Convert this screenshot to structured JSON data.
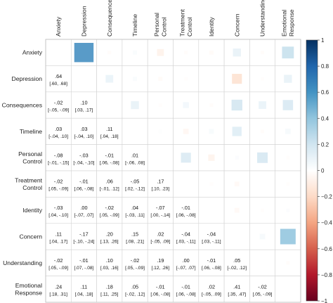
{
  "chart_data": {
    "type": "heatmap",
    "subtype": "correlation-matrix",
    "variables": [
      [
        "Anxiety"
      ],
      [
        "Depression"
      ],
      [
        "Consequences"
      ],
      [
        "Timeline"
      ],
      [
        "Personal",
        "Control"
      ],
      [
        "Treatment",
        "Control"
      ],
      [
        "Identity"
      ],
      [
        "Concern"
      ],
      [
        "Understanding"
      ],
      [
        "Emotional",
        "Response"
      ]
    ],
    "upper_triangle_display": "colored squares sized and colored by correlation",
    "lower_triangle_display": "correlation coefficient with 95% confidence interval",
    "lower_cells": [
      {
        "row": 1,
        "col": 0,
        "r": 0.64,
        "r_label": ".64",
        "ci": "[.60, .68]"
      },
      {
        "row": 2,
        "col": 0,
        "r": -0.02,
        "r_label": "-.02",
        "ci": "[-.05, -.09]"
      },
      {
        "row": 2,
        "col": 1,
        "r": 0.1,
        "r_label": ".10",
        "ci": "[.03, .17]"
      },
      {
        "row": 3,
        "col": 0,
        "r": 0.03,
        "r_label": ".03",
        "ci": "[-.04, .10]"
      },
      {
        "row": 3,
        "col": 1,
        "r": 0.03,
        "r_label": ".03",
        "ci": "[-.04, .10]"
      },
      {
        "row": 3,
        "col": 2,
        "r": 0.11,
        "r_label": ".11",
        "ci": "[.04, .18]"
      },
      {
        "row": 4,
        "col": 0,
        "r": -0.08,
        "r_label": "-.08",
        "ci": "[-.01, -.15]"
      },
      {
        "row": 4,
        "col": 1,
        "r": -0.03,
        "r_label": "-.03",
        "ci": "[-.04, -.10]"
      },
      {
        "row": 4,
        "col": 2,
        "r": -0.01,
        "r_label": "-.01",
        "ci": "[.06, -.08]"
      },
      {
        "row": 4,
        "col": 3,
        "r": 0.01,
        "r_label": ".01",
        "ci": "[-.06, .08]"
      },
      {
        "row": 5,
        "col": 0,
        "r": -0.02,
        "r_label": "-.02",
        "ci": "[.05, -.09]"
      },
      {
        "row": 5,
        "col": 1,
        "r": -0.01,
        "r_label": "-.01",
        "ci": "[.06, -.08]"
      },
      {
        "row": 5,
        "col": 2,
        "r": 0.06,
        "r_label": ".06",
        "ci": "[-.01, .12]"
      },
      {
        "row": 5,
        "col": 3,
        "r": -0.05,
        "r_label": "-.05",
        "ci": "[.02, -.12]"
      },
      {
        "row": 5,
        "col": 4,
        "r": 0.17,
        "r_label": ".17",
        "ci": "[.10, .23]"
      },
      {
        "row": 6,
        "col": 0,
        "r": -0.03,
        "r_label": "-.03",
        "ci": "[.04, -.10]"
      },
      {
        "row": 6,
        "col": 1,
        "r": 0.0,
        "r_label": ".00",
        "ci": "[-.07, .07]"
      },
      {
        "row": 6,
        "col": 2,
        "r": -0.02,
        "r_label": "-.02",
        "ci": "[.05, -.09]"
      },
      {
        "row": 6,
        "col": 3,
        "r": 0.04,
        "r_label": ".04",
        "ci": "[-.03, .11]"
      },
      {
        "row": 6,
        "col": 4,
        "r": -0.07,
        "r_label": "-.07",
        "ci": "[.00, -.14]"
      },
      {
        "row": 6,
        "col": 5,
        "r": -0.01,
        "r_label": "-.01",
        "ci": "[.06, -.08]"
      },
      {
        "row": 7,
        "col": 0,
        "r": 0.11,
        "r_label": ".11",
        "ci": "[.04, .17]"
      },
      {
        "row": 7,
        "col": 1,
        "r": -0.17,
        "r_label": "-.17",
        "ci": "[-.10, -.24]"
      },
      {
        "row": 7,
        "col": 2,
        "r": 0.2,
        "r_label": ".20",
        "ci": "[.13, .26]"
      },
      {
        "row": 7,
        "col": 3,
        "r": 0.15,
        "r_label": ".15",
        "ci": "[.08, .21]"
      },
      {
        "row": 7,
        "col": 4,
        "r": 0.02,
        "r_label": ".02",
        "ci": "[-.05, .09]"
      },
      {
        "row": 7,
        "col": 5,
        "r": -0.04,
        "r_label": "-.04",
        "ci": "[.03, -.11]"
      },
      {
        "row": 7,
        "col": 6,
        "r": -0.04,
        "r_label": "-.04",
        "ci": "[.03, -.11]"
      },
      {
        "row": 8,
        "col": 0,
        "r": -0.02,
        "r_label": "-.02",
        "ci": "[.05, -.09]"
      },
      {
        "row": 8,
        "col": 1,
        "r": -0.01,
        "r_label": "-.01",
        "ci": "[.07, -.08]"
      },
      {
        "row": 8,
        "col": 2,
        "r": 0.1,
        "r_label": ".10",
        "ci": "[.03, .16]"
      },
      {
        "row": 8,
        "col": 3,
        "r": -0.02,
        "r_label": "-.02",
        "ci": "[.05, -.09]"
      },
      {
        "row": 8,
        "col": 4,
        "r": 0.19,
        "r_label": ".19",
        "ci": "[.12, .26]"
      },
      {
        "row": 8,
        "col": 5,
        "r": 0.0,
        "r_label": ".00",
        "ci": "[-.07, .07]"
      },
      {
        "row": 8,
        "col": 6,
        "r": -0.01,
        "r_label": "-.01",
        "ci": "[.06, -.08]"
      },
      {
        "row": 8,
        "col": 7,
        "r": 0.05,
        "r_label": ".05",
        "ci": "[-.02, .12]"
      },
      {
        "row": 9,
        "col": 0,
        "r": 0.24,
        "r_label": ".24",
        "ci": "[.18, .31]"
      },
      {
        "row": 9,
        "col": 1,
        "r": 0.11,
        "r_label": ".11",
        "ci": "[.04, .18]"
      },
      {
        "row": 9,
        "col": 2,
        "r": 0.18,
        "r_label": ".18",
        "ci": "[.11, .25]"
      },
      {
        "row": 9,
        "col": 3,
        "r": 0.05,
        "r_label": ".05",
        "ci": "[-.02, .12]"
      },
      {
        "row": 9,
        "col": 4,
        "r": -0.01,
        "r_label": "-.01",
        "ci": "[.06, -.08]"
      },
      {
        "row": 9,
        "col": 5,
        "r": -0.01,
        "r_label": "-.01",
        "ci": "[.06, -.08]"
      },
      {
        "row": 9,
        "col": 6,
        "r": 0.02,
        "r_label": ".02",
        "ci": "[-.05, .09]"
      },
      {
        "row": 9,
        "col": 7,
        "r": 0.41,
        "r_label": ".41",
        "ci": "[.35, .47]"
      },
      {
        "row": 9,
        "col": 8,
        "r": -0.02,
        "r_label": "-.02",
        "ci": "[.05, -.09]"
      }
    ],
    "color_scale": {
      "range": [
        -1,
        1
      ],
      "ticks": [
        1,
        0.8,
        0.6,
        0.4,
        0.2,
        0,
        -0.2,
        -0.4,
        -0.6,
        -0.8,
        -1
      ],
      "tick_labels": [
        "1",
        "0.8",
        "0.6",
        "0.4",
        "0.2",
        "0",
        "−0.2",
        "−0.4",
        "−0.6",
        "−0.8",
        "−1"
      ],
      "colors": [
        "#67001F",
        "#B2182B",
        "#D6604D",
        "#F4A582",
        "#FDDBC7",
        "#FFFFFF",
        "#D1E5F0",
        "#92C5DE",
        "#4393C3",
        "#2166AC",
        "#053061"
      ],
      "legend_position": "right"
    },
    "grid": true
  }
}
